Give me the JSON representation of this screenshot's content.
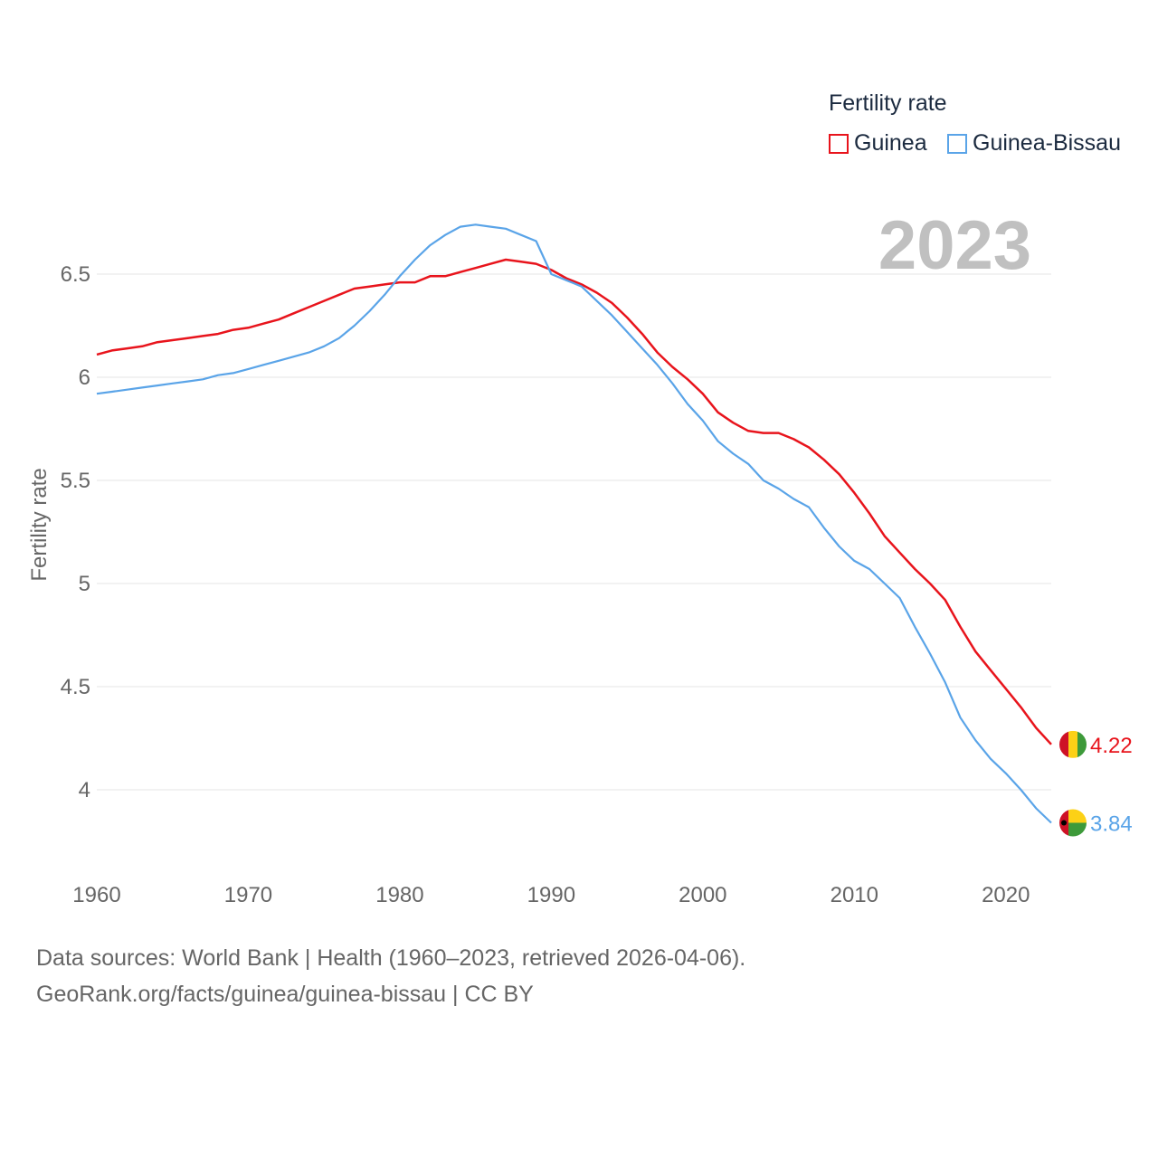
{
  "legend": {
    "title": "Fertility rate",
    "items": [
      {
        "name": "Guinea",
        "color": "#e8141c"
      },
      {
        "name": "Guinea-Bissau",
        "color": "#5aa4e8"
      }
    ]
  },
  "year_label": "2023",
  "footer": {
    "line1": "Data sources: World Bank | Health (1960–2023, retrieved 2026-04-06).",
    "line2": "GeoRank.org/facts/guinea/guinea-bissau | CC BY"
  },
  "chart_data": {
    "type": "line",
    "title": "Fertility rate",
    "xlabel": "",
    "ylabel": "Fertility rate",
    "xlim": [
      1960,
      2023
    ],
    "ylim": [
      3.7,
      6.85
    ],
    "x_ticks": [
      1960,
      1970,
      1980,
      1990,
      2000,
      2010,
      2020
    ],
    "y_ticks": [
      4,
      4.5,
      5,
      5.5,
      6,
      6.5
    ],
    "y_tick_labels": [
      "4",
      "4.5",
      "5",
      "5.5",
      "6",
      "6.5"
    ],
    "grid": true,
    "legend_position": "top-right",
    "x": [
      1960,
      1961,
      1962,
      1963,
      1964,
      1965,
      1966,
      1967,
      1968,
      1969,
      1970,
      1971,
      1972,
      1973,
      1974,
      1975,
      1976,
      1977,
      1978,
      1979,
      1980,
      1981,
      1982,
      1983,
      1984,
      1985,
      1986,
      1987,
      1988,
      1989,
      1990,
      1991,
      1992,
      1993,
      1994,
      1995,
      1996,
      1997,
      1998,
      1999,
      2000,
      2001,
      2002,
      2003,
      2004,
      2005,
      2006,
      2007,
      2008,
      2009,
      2010,
      2011,
      2012,
      2013,
      2014,
      2015,
      2016,
      2017,
      2018,
      2019,
      2020,
      2021,
      2022,
      2023
    ],
    "series": [
      {
        "name": "Guinea",
        "color": "#e8141c",
        "end_label": "4.22",
        "values": [
          6.11,
          6.13,
          6.14,
          6.15,
          6.17,
          6.18,
          6.19,
          6.2,
          6.21,
          6.23,
          6.24,
          6.26,
          6.28,
          6.31,
          6.34,
          6.37,
          6.4,
          6.43,
          6.44,
          6.45,
          6.46,
          6.46,
          6.49,
          6.49,
          6.51,
          6.53,
          6.55,
          6.57,
          6.56,
          6.55,
          6.52,
          6.48,
          6.45,
          6.41,
          6.36,
          6.29,
          6.21,
          6.12,
          6.05,
          5.99,
          5.92,
          5.83,
          5.78,
          5.74,
          5.73,
          5.73,
          5.7,
          5.66,
          5.6,
          5.53,
          5.44,
          5.34,
          5.23,
          5.15,
          5.07,
          5.0,
          4.92,
          4.79,
          4.67,
          4.58,
          4.49,
          4.4,
          4.3,
          4.22
        ]
      },
      {
        "name": "Guinea-Bissau",
        "color": "#5aa4e8",
        "end_label": "3.84",
        "values": [
          5.92,
          5.93,
          5.94,
          5.95,
          5.96,
          5.97,
          5.98,
          5.99,
          6.01,
          6.02,
          6.04,
          6.06,
          6.08,
          6.1,
          6.12,
          6.15,
          6.19,
          6.25,
          6.32,
          6.4,
          6.49,
          6.57,
          6.64,
          6.69,
          6.73,
          6.74,
          6.73,
          6.72,
          6.69,
          6.66,
          6.5,
          6.47,
          6.44,
          6.37,
          6.3,
          6.22,
          6.14,
          6.06,
          5.97,
          5.87,
          5.79,
          5.69,
          5.63,
          5.58,
          5.5,
          5.46,
          5.41,
          5.37,
          5.27,
          5.18,
          5.11,
          5.07,
          5.0,
          4.93,
          4.79,
          4.66,
          4.52,
          4.35,
          4.24,
          4.15,
          4.08,
          4.0,
          3.91,
          3.84
        ]
      }
    ]
  }
}
